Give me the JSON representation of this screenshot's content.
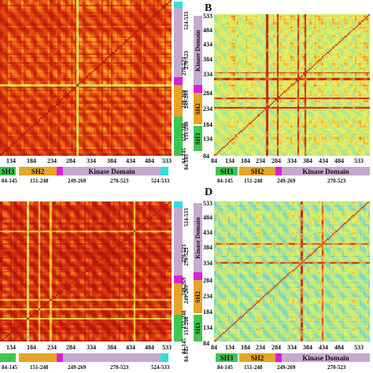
{
  "panels": [
    {
      "id": "A",
      "label": "",
      "scheme": "warm"
    },
    {
      "id": "B",
      "label": "B",
      "scheme": "cool"
    },
    {
      "id": "C",
      "label": "",
      "scheme": "warm"
    },
    {
      "id": "D",
      "label": "D",
      "scheme": "cool"
    }
  ],
  "x_ticks": [
    "84",
    "134",
    "184",
    "234",
    "284",
    "334",
    "384",
    "434",
    "484",
    "533"
  ],
  "y_ticks": [
    "533",
    "484",
    "434",
    "384",
    "334",
    "284",
    "234",
    "184",
    "134",
    "84"
  ],
  "domains": {
    "sh3": {
      "label": "SH3",
      "range": "84-145",
      "color": "#3fc64f"
    },
    "sh2": {
      "label": "SH2",
      "range": "151-248",
      "color": "#e6a428"
    },
    "linker": {
      "label": "",
      "range": "249-269",
      "color": "#d820d8"
    },
    "kinase": {
      "label": "Kinase Domain",
      "range": "270-523",
      "color": "#c6a9ce"
    },
    "ct": {
      "label": "",
      "range": "524-533",
      "color": "#2de1e1"
    }
  },
  "left_partial": {
    "sh3_label": "SH3",
    "kinase_label": "Kinase Domain",
    "sh2_label": "SH2"
  },
  "colors": {
    "warm_base": "#c42210",
    "cool_base": "#e4ea60"
  }
}
